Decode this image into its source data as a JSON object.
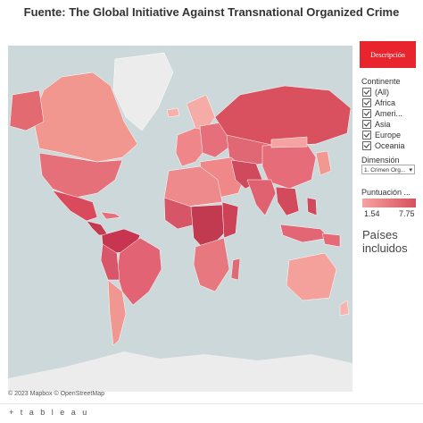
{
  "title": "Fuente: The Global Initiative Against Transnational Organized Crime",
  "description_button": "Descripción",
  "filters": {
    "continent_label": "Continente",
    "continents": [
      "(All)",
      "Africa",
      "Ameri...",
      "Asia",
      "Europe",
      "Oceania"
    ],
    "dimension_label": "Dimensión",
    "dimension_value": "1. Crimen Org..."
  },
  "legend": {
    "label": "Puntuación ...",
    "min": "1.54",
    "max": "7.75",
    "color_low": "#f5a3a0",
    "color_high": "#d94f5c"
  },
  "countries_label": "Países incluidos",
  "map": {
    "attribution": "© 2023 Mapbox  © OpenStreetMap",
    "ocean_color": "#ccd8da",
    "land_nodata_color": "#e8e8e8"
  },
  "footer": {
    "brand": "+ t a b l e a u"
  }
}
